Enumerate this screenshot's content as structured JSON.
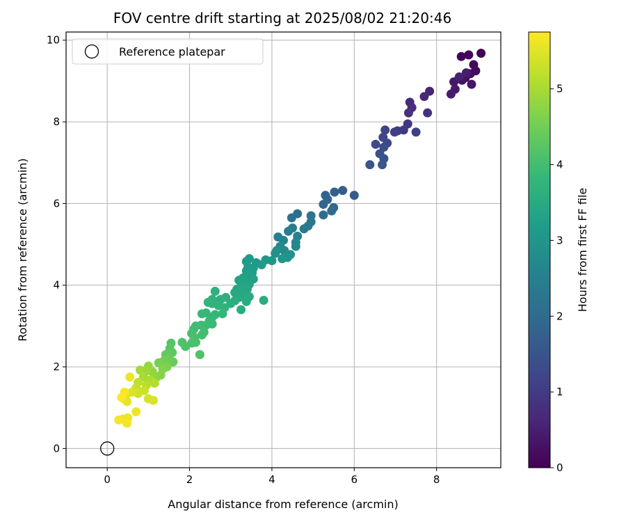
{
  "chart_data": {
    "type": "scatter",
    "title": "FOV centre drift starting at 2025/08/02 21:20:46",
    "xlabel": "Angular distance from reference (arcmin)",
    "ylabel": "Rotation from reference (arcmin)",
    "xlim": [
      -1.0,
      9.56
    ],
    "ylim": [
      -0.47,
      10.2
    ],
    "xticks": [
      0,
      2,
      4,
      6,
      8
    ],
    "yticks": [
      0,
      2,
      4,
      6,
      8,
      10
    ],
    "grid": true,
    "legend": {
      "position": "top-left",
      "entries": [
        "Reference platepar"
      ]
    },
    "reference_point": {
      "x": 0,
      "y": 0,
      "label": "Reference platepar"
    },
    "colorbar": {
      "label": "Hours from first FF file",
      "range": [
        0,
        5.75
      ],
      "ticks": [
        0,
        1,
        2,
        3,
        4,
        5
      ],
      "colormap": "viridis"
    },
    "series": [
      {
        "color_by": "hours",
        "points": [
          {
            "x": 9.08,
            "y": 9.68,
            "h": 0.0
          },
          {
            "x": 8.78,
            "y": 9.64,
            "h": 0.04
          },
          {
            "x": 8.6,
            "y": 9.6,
            "h": 0.08
          },
          {
            "x": 8.9,
            "y": 9.4,
            "h": 0.12
          },
          {
            "x": 8.95,
            "y": 9.25,
            "h": 0.16
          },
          {
            "x": 8.82,
            "y": 9.18,
            "h": 0.2
          },
          {
            "x": 8.7,
            "y": 9.08,
            "h": 0.24
          },
          {
            "x": 8.62,
            "y": 9.02,
            "h": 0.28
          },
          {
            "x": 8.85,
            "y": 8.92,
            "h": 0.32
          },
          {
            "x": 8.42,
            "y": 8.98,
            "h": 0.36
          },
          {
            "x": 8.45,
            "y": 8.8,
            "h": 0.4
          },
          {
            "x": 8.35,
            "y": 8.68,
            "h": 0.44
          },
          {
            "x": 8.72,
            "y": 9.2,
            "h": 0.48
          },
          {
            "x": 8.55,
            "y": 9.1,
            "h": 0.52
          },
          {
            "x": 7.83,
            "y": 8.75,
            "h": 0.6
          },
          {
            "x": 7.7,
            "y": 8.62,
            "h": 0.65
          },
          {
            "x": 7.35,
            "y": 8.48,
            "h": 0.7
          },
          {
            "x": 7.4,
            "y": 8.35,
            "h": 0.75
          },
          {
            "x": 7.32,
            "y": 8.22,
            "h": 0.8
          },
          {
            "x": 7.78,
            "y": 8.22,
            "h": 0.85
          },
          {
            "x": 7.3,
            "y": 7.95,
            "h": 0.9
          },
          {
            "x": 7.2,
            "y": 7.8,
            "h": 0.95
          },
          {
            "x": 7.05,
            "y": 7.78,
            "h": 1.0
          },
          {
            "x": 6.98,
            "y": 7.75,
            "h": 1.05
          },
          {
            "x": 7.5,
            "y": 7.75,
            "h": 1.1
          },
          {
            "x": 6.75,
            "y": 7.8,
            "h": 1.15
          },
          {
            "x": 6.7,
            "y": 7.62,
            "h": 1.2
          },
          {
            "x": 6.8,
            "y": 7.48,
            "h": 1.25
          },
          {
            "x": 6.52,
            "y": 7.45,
            "h": 1.3
          },
          {
            "x": 6.72,
            "y": 7.38,
            "h": 1.35
          },
          {
            "x": 6.62,
            "y": 7.22,
            "h": 1.4
          },
          {
            "x": 6.72,
            "y": 7.1,
            "h": 1.45
          },
          {
            "x": 6.38,
            "y": 6.95,
            "h": 1.5
          },
          {
            "x": 6.68,
            "y": 6.95,
            "h": 1.55
          },
          {
            "x": 6.0,
            "y": 6.2,
            "h": 1.65
          },
          {
            "x": 5.72,
            "y": 6.32,
            "h": 1.7
          },
          {
            "x": 5.52,
            "y": 6.28,
            "h": 1.75
          },
          {
            "x": 5.3,
            "y": 6.2,
            "h": 1.8
          },
          {
            "x": 5.35,
            "y": 6.1,
            "h": 1.85
          },
          {
            "x": 5.25,
            "y": 5.98,
            "h": 1.9
          },
          {
            "x": 5.5,
            "y": 5.9,
            "h": 1.95
          },
          {
            "x": 5.45,
            "y": 5.82,
            "h": 2.0
          },
          {
            "x": 5.25,
            "y": 5.72,
            "h": 2.05
          },
          {
            "x": 4.62,
            "y": 5.75,
            "h": 2.1
          },
          {
            "x": 4.48,
            "y": 5.65,
            "h": 2.15
          },
          {
            "x": 4.95,
            "y": 5.7,
            "h": 2.2
          },
          {
            "x": 4.95,
            "y": 5.55,
            "h": 2.25
          },
          {
            "x": 4.88,
            "y": 5.45,
            "h": 2.3
          },
          {
            "x": 4.78,
            "y": 5.38,
            "h": 2.35
          },
          {
            "x": 4.5,
            "y": 5.4,
            "h": 2.4
          },
          {
            "x": 4.4,
            "y": 5.32,
            "h": 2.45
          },
          {
            "x": 4.15,
            "y": 5.18,
            "h": 2.5
          },
          {
            "x": 4.62,
            "y": 5.2,
            "h": 2.55
          },
          {
            "x": 4.28,
            "y": 5.1,
            "h": 2.6
          },
          {
            "x": 4.58,
            "y": 5.05,
            "h": 2.65
          },
          {
            "x": 4.58,
            "y": 4.95,
            "h": 2.7
          },
          {
            "x": 4.2,
            "y": 4.95,
            "h": 2.75
          },
          {
            "x": 4.3,
            "y": 4.85,
            "h": 2.8
          },
          {
            "x": 4.12,
            "y": 4.85,
            "h": 2.85
          },
          {
            "x": 4.08,
            "y": 4.78,
            "h": 2.9
          },
          {
            "x": 4.45,
            "y": 4.75,
            "h": 2.95
          },
          {
            "x": 4.38,
            "y": 4.68,
            "h": 3.0
          },
          {
            "x": 4.25,
            "y": 4.65,
            "h": 3.02
          },
          {
            "x": 4.0,
            "y": 4.6,
            "h": 3.04
          },
          {
            "x": 3.85,
            "y": 4.62,
            "h": 3.06
          },
          {
            "x": 3.62,
            "y": 4.55,
            "h": 3.08
          },
          {
            "x": 3.45,
            "y": 4.65,
            "h": 3.1
          },
          {
            "x": 3.38,
            "y": 4.58,
            "h": 3.12
          },
          {
            "x": 3.75,
            "y": 4.5,
            "h": 3.14
          },
          {
            "x": 3.55,
            "y": 4.42,
            "h": 3.16
          },
          {
            "x": 3.42,
            "y": 4.45,
            "h": 3.18
          },
          {
            "x": 3.38,
            "y": 4.35,
            "h": 3.2
          },
          {
            "x": 3.52,
            "y": 4.3,
            "h": 3.22
          },
          {
            "x": 3.42,
            "y": 4.22,
            "h": 3.24
          },
          {
            "x": 3.55,
            "y": 4.15,
            "h": 3.26
          },
          {
            "x": 3.3,
            "y": 4.18,
            "h": 3.28
          },
          {
            "x": 3.2,
            "y": 4.12,
            "h": 3.3
          },
          {
            "x": 3.35,
            "y": 4.05,
            "h": 3.32
          },
          {
            "x": 3.45,
            "y": 4.02,
            "h": 3.34
          },
          {
            "x": 3.25,
            "y": 3.98,
            "h": 3.36
          },
          {
            "x": 3.15,
            "y": 3.9,
            "h": 3.38
          },
          {
            "x": 3.4,
            "y": 3.9,
            "h": 3.4
          },
          {
            "x": 3.28,
            "y": 3.85,
            "h": 3.42
          },
          {
            "x": 3.1,
            "y": 3.82,
            "h": 3.44
          },
          {
            "x": 3.35,
            "y": 3.75,
            "h": 3.46
          },
          {
            "x": 3.2,
            "y": 3.7,
            "h": 3.48
          },
          {
            "x": 3.45,
            "y": 3.72,
            "h": 3.5
          },
          {
            "x": 3.1,
            "y": 3.62,
            "h": 3.52
          },
          {
            "x": 3.38,
            "y": 3.6,
            "h": 3.54
          },
          {
            "x": 3.8,
            "y": 3.63,
            "h": 3.56
          },
          {
            "x": 3.25,
            "y": 3.4,
            "h": 3.58
          },
          {
            "x": 3.0,
            "y": 3.55,
            "h": 3.6
          },
          {
            "x": 2.88,
            "y": 3.7,
            "h": 3.62
          },
          {
            "x": 2.75,
            "y": 3.65,
            "h": 3.64
          },
          {
            "x": 2.62,
            "y": 3.85,
            "h": 3.66
          },
          {
            "x": 2.55,
            "y": 3.65,
            "h": 3.68
          },
          {
            "x": 2.85,
            "y": 3.45,
            "h": 3.7
          },
          {
            "x": 2.7,
            "y": 3.5,
            "h": 3.72
          },
          {
            "x": 2.55,
            "y": 3.55,
            "h": 3.74
          },
          {
            "x": 2.45,
            "y": 3.58,
            "h": 3.76
          },
          {
            "x": 2.62,
            "y": 3.28,
            "h": 3.78
          },
          {
            "x": 2.8,
            "y": 3.3,
            "h": 3.8
          },
          {
            "x": 2.55,
            "y": 3.22,
            "h": 3.82
          },
          {
            "x": 2.4,
            "y": 3.32,
            "h": 3.84
          },
          {
            "x": 2.3,
            "y": 3.3,
            "h": 3.86
          },
          {
            "x": 2.48,
            "y": 3.12,
            "h": 3.88
          },
          {
            "x": 2.55,
            "y": 3.05,
            "h": 3.9
          },
          {
            "x": 2.4,
            "y": 3.02,
            "h": 3.92
          },
          {
            "x": 2.28,
            "y": 3.02,
            "h": 3.94
          },
          {
            "x": 2.15,
            "y": 3.0,
            "h": 3.96
          },
          {
            "x": 2.1,
            "y": 2.92,
            "h": 3.98
          },
          {
            "x": 2.35,
            "y": 2.85,
            "h": 4.0
          },
          {
            "x": 2.3,
            "y": 2.78,
            "h": 4.02
          },
          {
            "x": 2.05,
            "y": 2.82,
            "h": 4.04
          },
          {
            "x": 2.12,
            "y": 2.72,
            "h": 4.06
          },
          {
            "x": 2.15,
            "y": 2.6,
            "h": 4.08
          },
          {
            "x": 2.05,
            "y": 2.58,
            "h": 4.1
          },
          {
            "x": 1.9,
            "y": 2.5,
            "h": 4.12
          },
          {
            "x": 1.82,
            "y": 2.6,
            "h": 4.14
          },
          {
            "x": 2.25,
            "y": 2.3,
            "h": 4.16
          },
          {
            "x": 1.55,
            "y": 2.58,
            "h": 4.2
          },
          {
            "x": 1.52,
            "y": 2.45,
            "h": 4.25
          },
          {
            "x": 1.58,
            "y": 2.35,
            "h": 4.3
          },
          {
            "x": 1.42,
            "y": 2.3,
            "h": 4.35
          },
          {
            "x": 1.6,
            "y": 2.12,
            "h": 4.4
          },
          {
            "x": 1.5,
            "y": 2.2,
            "h": 4.45
          },
          {
            "x": 1.38,
            "y": 2.15,
            "h": 4.5
          },
          {
            "x": 1.25,
            "y": 2.1,
            "h": 4.55
          },
          {
            "x": 1.45,
            "y": 2.0,
            "h": 4.6
          },
          {
            "x": 1.35,
            "y": 1.95,
            "h": 4.65
          },
          {
            "x": 1.3,
            "y": 1.8,
            "h": 4.7
          },
          {
            "x": 1.2,
            "y": 1.75,
            "h": 4.75
          },
          {
            "x": 1.1,
            "y": 1.88,
            "h": 4.8
          },
          {
            "x": 1.0,
            "y": 2.02,
            "h": 4.85
          },
          {
            "x": 0.95,
            "y": 1.9,
            "h": 4.9
          },
          {
            "x": 0.8,
            "y": 1.92,
            "h": 4.95
          },
          {
            "x": 0.88,
            "y": 1.75,
            "h": 5.0
          },
          {
            "x": 1.05,
            "y": 1.68,
            "h": 5.05
          },
          {
            "x": 1.15,
            "y": 1.6,
            "h": 5.1
          },
          {
            "x": 0.95,
            "y": 1.55,
            "h": 5.15
          },
          {
            "x": 0.75,
            "y": 1.62,
            "h": 5.2
          },
          {
            "x": 0.7,
            "y": 1.48,
            "h": 5.25
          },
          {
            "x": 0.9,
            "y": 1.42,
            "h": 5.3
          },
          {
            "x": 0.75,
            "y": 1.35,
            "h": 5.35
          },
          {
            "x": 1.0,
            "y": 1.22,
            "h": 5.4
          },
          {
            "x": 1.12,
            "y": 1.18,
            "h": 5.42
          },
          {
            "x": 0.6,
            "y": 1.38,
            "h": 5.45
          },
          {
            "x": 0.45,
            "y": 1.3,
            "h": 5.5
          },
          {
            "x": 0.4,
            "y": 1.22,
            "h": 5.52
          },
          {
            "x": 0.48,
            "y": 1.15,
            "h": 5.55
          },
          {
            "x": 0.55,
            "y": 1.75,
            "h": 5.58
          },
          {
            "x": 0.7,
            "y": 0.9,
            "h": 5.6
          },
          {
            "x": 0.5,
            "y": 0.75,
            "h": 5.62
          },
          {
            "x": 0.38,
            "y": 0.72,
            "h": 5.64
          },
          {
            "x": 0.48,
            "y": 0.62,
            "h": 5.66
          },
          {
            "x": 0.28,
            "y": 0.7,
            "h": 5.68
          },
          {
            "x": 0.42,
            "y": 1.38,
            "h": 5.7
          },
          {
            "x": 0.35,
            "y": 1.25,
            "h": 5.72
          }
        ]
      }
    ]
  }
}
